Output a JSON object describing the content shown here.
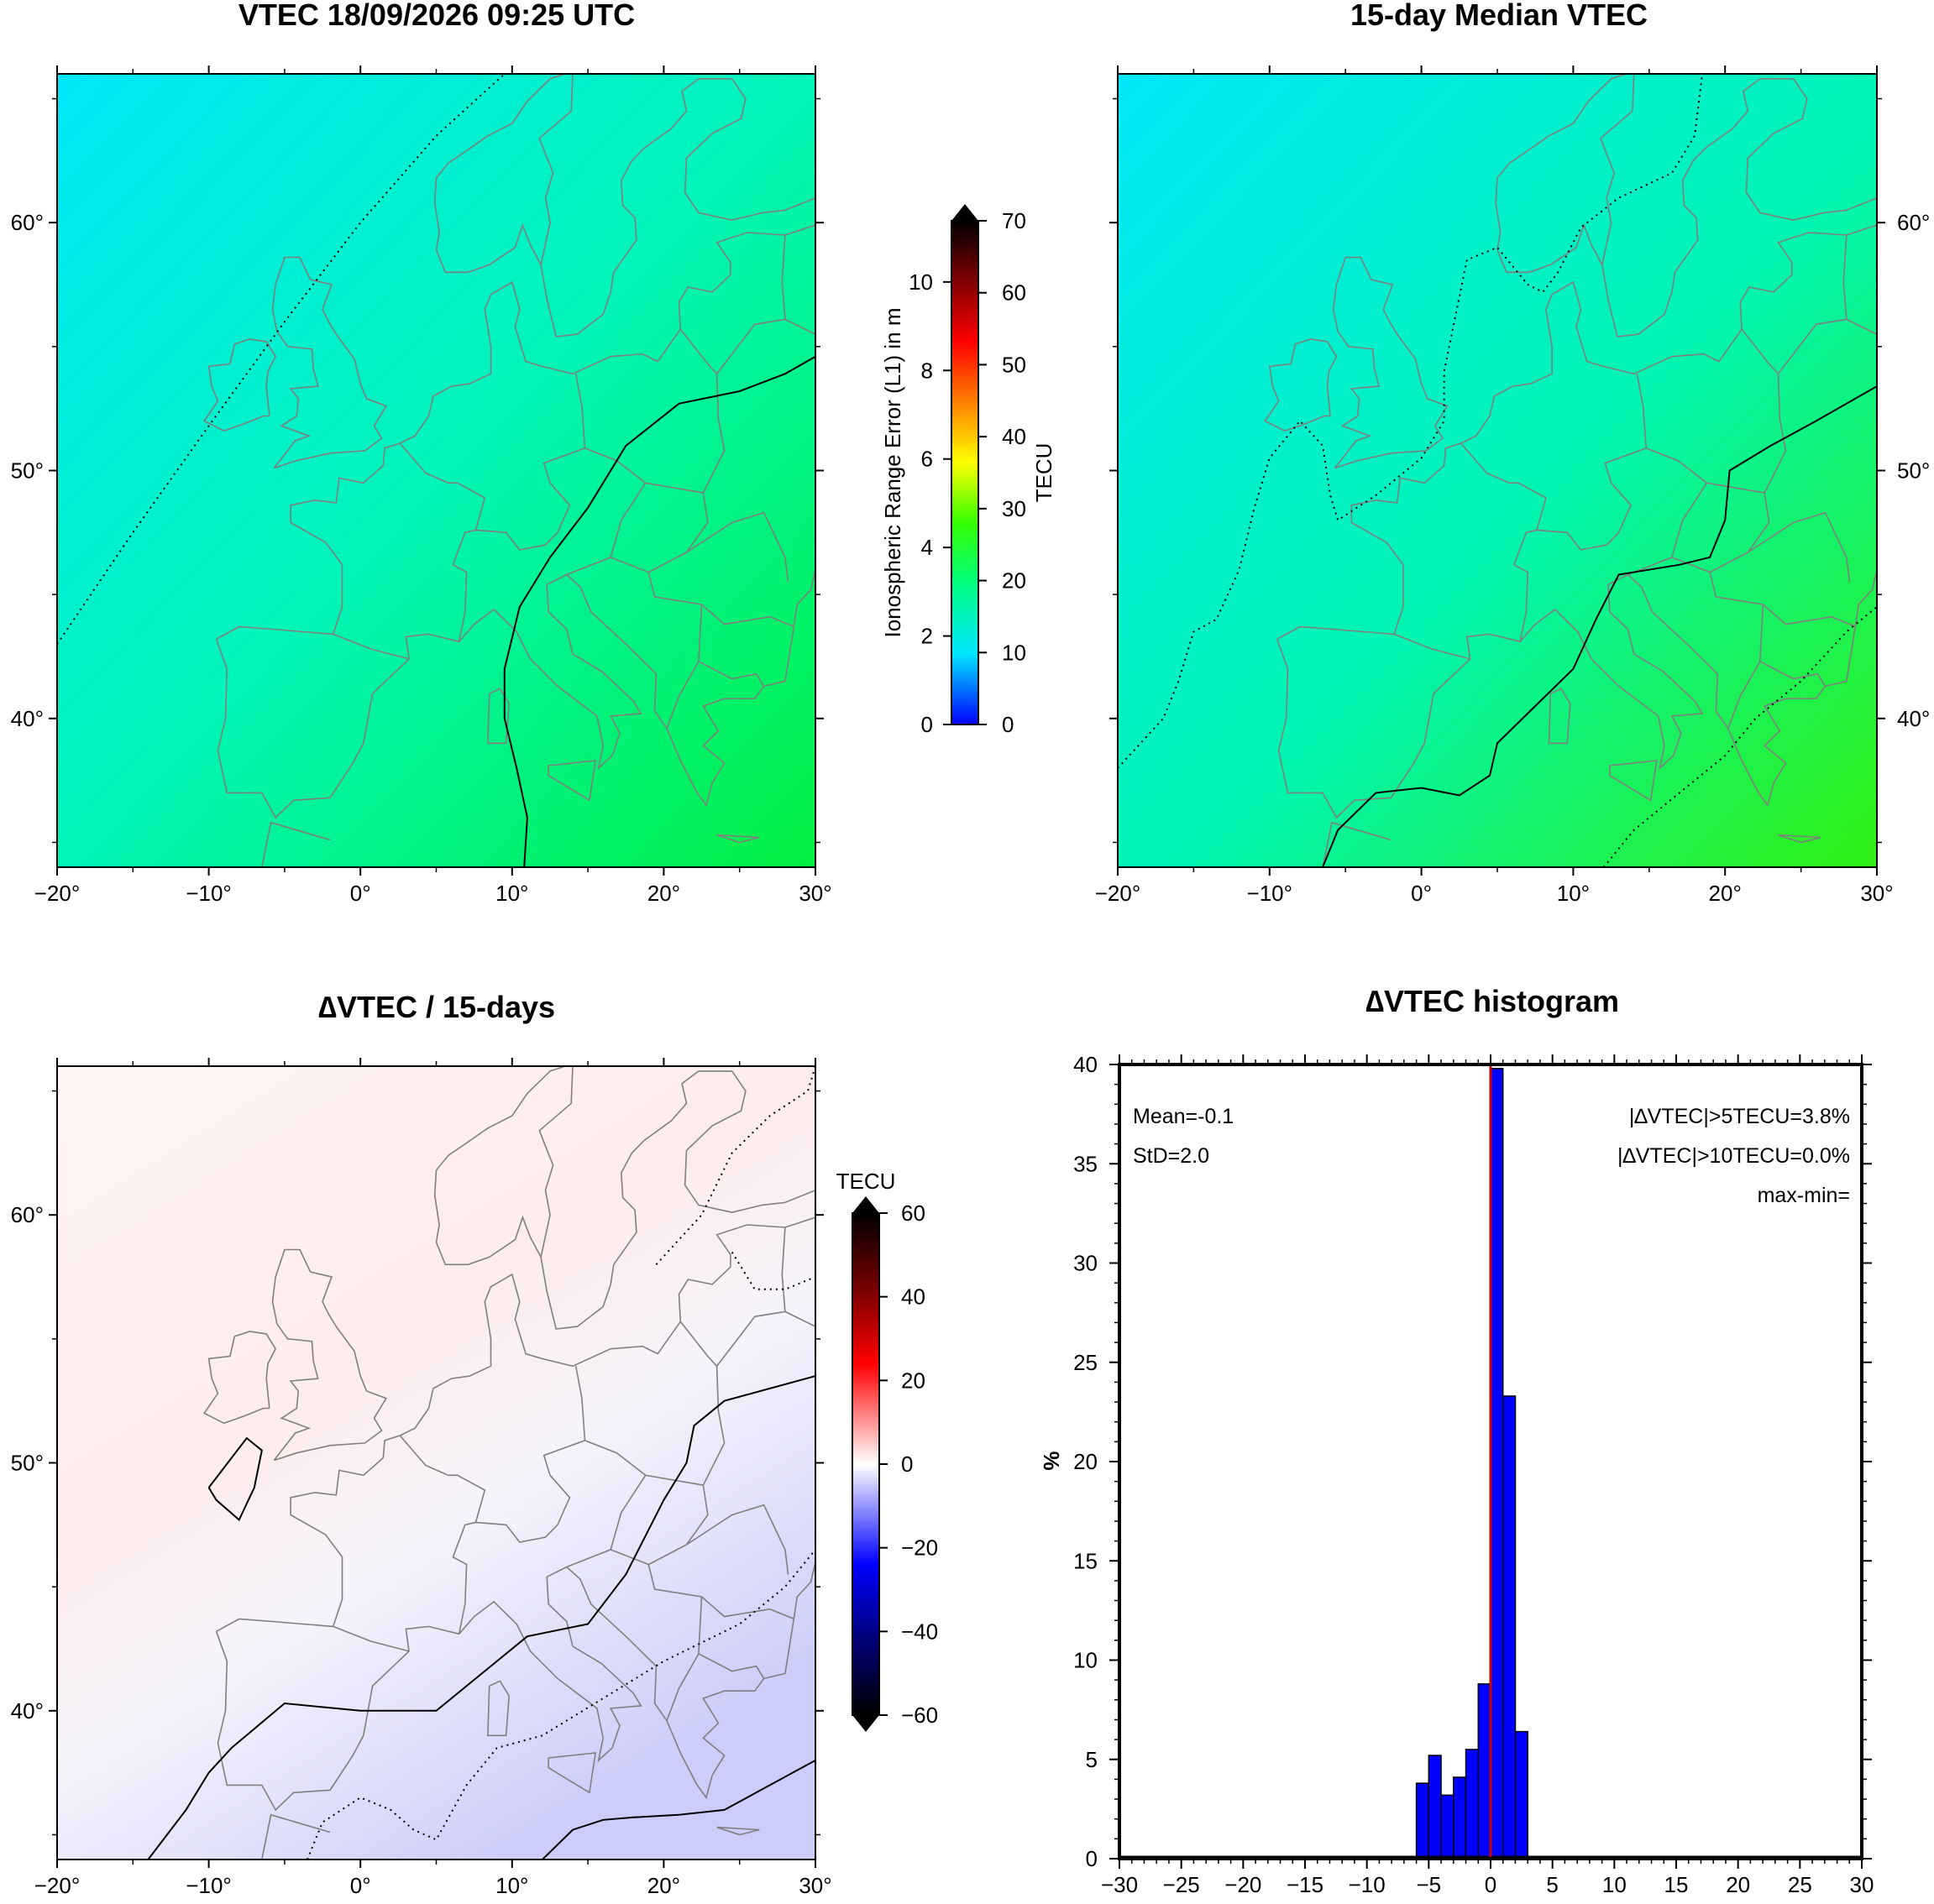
{
  "titles": {
    "vtec": "VTEC 18/09/2026 09:25 UTC",
    "median": "15-day Median VTEC",
    "delta": "∆VTEC / 15-days",
    "histogram": "∆VTEC histogram"
  },
  "map_axes": {
    "lon_ticks": [
      -20,
      -10,
      0,
      10,
      20,
      30
    ],
    "lon_labels": [
      "−20°",
      "−10°",
      "0°",
      "10°",
      "20°",
      "30°"
    ],
    "lat_ticks": [
      40,
      50,
      60
    ],
    "lat_labels": [
      "40°",
      "50°",
      "60°"
    ],
    "lon_range": [
      -20,
      30
    ],
    "lat_range": [
      34,
      66
    ]
  },
  "colorbar_vtec": {
    "tecu_label": "TECU",
    "meters_label": "Ionospheric Range Error (L1) in m",
    "tecu_ticks": [
      "0",
      "10",
      "20",
      "30",
      "40",
      "50",
      "60",
      "70"
    ],
    "meter_ticks": [
      "0",
      "2",
      "4",
      "6",
      "8",
      "10"
    ],
    "tecu_range": [
      0,
      70
    ],
    "colors": [
      "#0000ff",
      "#00e5ff",
      "#00ff80",
      "#33ff00",
      "#ffff00",
      "#ff8000",
      "#ff0000",
      "#800000",
      "#000000"
    ]
  },
  "colorbar_delta": {
    "label": "TECU",
    "ticks": [
      "60",
      "40",
      "20",
      "0",
      "−20",
      "−40",
      "−60"
    ],
    "range": [
      -60,
      60
    ],
    "colors": [
      "#000000",
      "#800000",
      "#ff0000",
      "#ff9999",
      "#ffffff",
      "#9999ff",
      "#0000ff",
      "#000080",
      "#000000"
    ]
  },
  "chart_data": [
    {
      "type": "heatmap",
      "title": "VTEC 18/09/2026 09:25 UTC",
      "xlabel": "",
      "ylabel": "",
      "xlim": [
        -20,
        30
      ],
      "ylim": [
        34,
        66
      ],
      "value_range_tecu": [
        10,
        22
      ],
      "colors": {
        "northwest": "#00e8f8",
        "center": "#00f5b8",
        "southeast": "#00f040"
      }
    },
    {
      "type": "heatmap",
      "title": "15-day Median VTEC",
      "xlabel": "",
      "ylabel": "",
      "xlim": [
        -20,
        30
      ],
      "ylim": [
        34,
        66
      ],
      "value_range_tecu": [
        10,
        24
      ],
      "colors": {
        "northwest": "#00e8f8",
        "center": "#00f5b0",
        "southeast": "#30f010"
      }
    },
    {
      "type": "heatmap",
      "title": "∆VTEC / 15-days",
      "xlabel": "",
      "ylabel": "",
      "xlim": [
        -20,
        30
      ],
      "ylim": [
        34,
        66
      ],
      "value_range_tecu": [
        -5,
        3
      ],
      "colors": {
        "northwest": "#fff4f4",
        "center": "#fdecec",
        "southeast": "#cccdfa"
      }
    },
    {
      "type": "bar",
      "title": "∆VTEC histogram",
      "xlabel": "",
      "ylabel": "%",
      "xlim": [
        -30,
        30
      ],
      "ylim": [
        0,
        40
      ],
      "x_ticks": [
        -30,
        -25,
        -20,
        -15,
        -10,
        -5,
        0,
        5,
        10,
        15,
        20,
        25,
        30
      ],
      "y_ticks": [
        0,
        5,
        10,
        15,
        20,
        25,
        30,
        35,
        40
      ],
      "bin_width": 1,
      "bin_starts": [
        -6,
        -5,
        -4,
        -3,
        -2,
        -1,
        0,
        1,
        2
      ],
      "values": [
        3.8,
        5.2,
        3.2,
        4.1,
        5.5,
        8.8,
        39.8,
        23.3,
        6.4
      ],
      "bar_color": "#0000ff",
      "marker_x": 0,
      "marker_color": "#cc0000",
      "annotations": {
        "mean": "Mean=-0.1",
        "std": "StD=2.0",
        "gt5": "|∆VTEC|>5TECU=3.8%",
        "gt10": "|∆VTEC|>10TECU=0.0%",
        "maxmin": "max-min="
      }
    }
  ]
}
